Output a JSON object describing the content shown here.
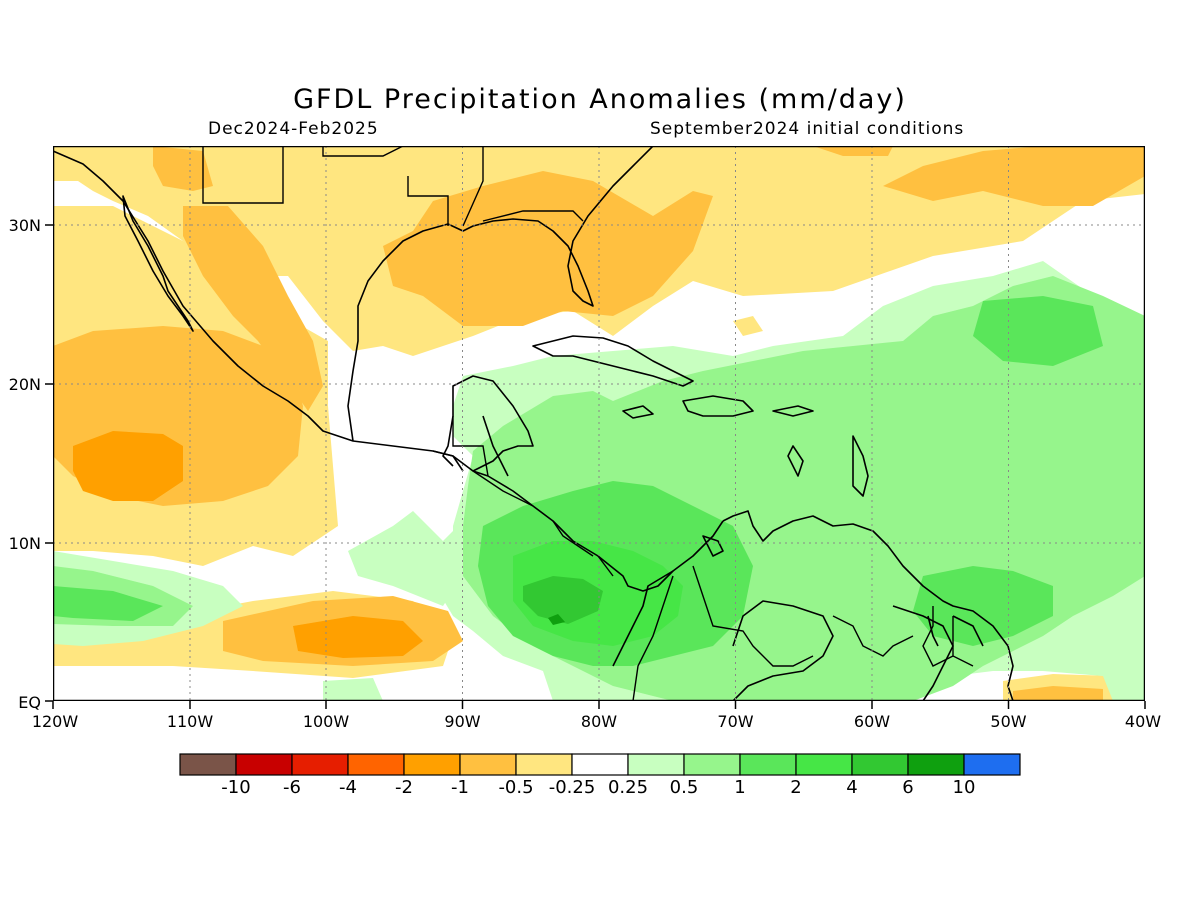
{
  "header": {
    "title": "GFDL Precipitation Anomalies (mm/day)",
    "period": "Dec2024-Feb2025",
    "initial_conditions": "September2024 initial conditions"
  },
  "map": {
    "lat_labels": [
      "30N",
      "20N",
      "10N",
      "EQ"
    ],
    "lon_labels": [
      "120W",
      "110W",
      "100W",
      "90W",
      "80W",
      "70W",
      "60W",
      "50W",
      "40W"
    ],
    "colors": {
      "dry_light": "#ffe680",
      "dry_medium": "#ffc040",
      "dry_strong": "#ffa000",
      "wet_light": "#c8ffc0",
      "wet_medium": "#96f58c",
      "wet_strong": "#5ae65a",
      "wet_stronger": "#46e646",
      "wet_heavy": "#32c832",
      "coast": "#000000",
      "grid": "#888888"
    }
  },
  "legend": {
    "colors": [
      "#7a5448",
      "#c80000",
      "#e61e00",
      "#ff6400",
      "#ffa000",
      "#ffc040",
      "#ffe680",
      "#ffffff",
      "#c8ffc0",
      "#96f58c",
      "#5ae65a",
      "#46e646",
      "#32c832",
      "#0fa00f",
      "#1e6ef0"
    ],
    "labels": [
      "-10",
      "-6",
      "-4",
      "-2",
      "-1",
      "-0.5",
      "-0.25",
      "0.25",
      "0.5",
      "1",
      "2",
      "4",
      "6",
      "10"
    ]
  }
}
